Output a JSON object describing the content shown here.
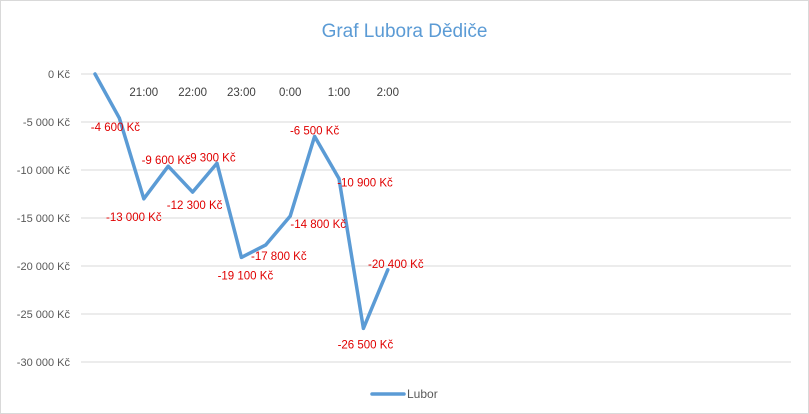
{
  "chart_data": {
    "type": "line",
    "title": "Graf Lubora Dědiče",
    "xlabel": "",
    "ylabel": "",
    "ylim": [
      -30000,
      0
    ],
    "yticks": [
      0,
      -5000,
      -10000,
      -15000,
      -20000,
      -25000,
      -30000
    ],
    "ytick_labels": [
      "0 Kč",
      "-5 000 Kč",
      "-10 000 Kč",
      "-15 000 Kč",
      "-20 000 Kč",
      "-25 000 Kč",
      "-30 000 Kč"
    ],
    "x_tick_labels": [
      "21:00",
      "22:00",
      "23:00",
      "0:00",
      "1:00",
      "2:00"
    ],
    "x_tick_index": [
      2,
      4,
      6,
      8,
      10,
      12
    ],
    "legend_position": "bottom",
    "grid": true,
    "series": [
      {
        "name": "Lubor",
        "color": "#5b9bd5",
        "values": [
          0,
          -4600,
          -13000,
          -9600,
          -12300,
          -9300,
          -19100,
          -17800,
          -14800,
          -6500,
          -10900,
          -26500,
          -20400
        ],
        "labels": [
          "",
          "-4 600 Kč",
          "-13 000 Kč",
          "-9 600 Kč",
          "-12 300 Kč",
          "-9 300 Kč",
          "-19 100 Kč",
          "-17 800 Kč",
          "-14 800 Kč",
          "-6 500 Kč",
          "-10 900 Kč",
          "-26 500 Kč",
          "-20 400 Kč"
        ]
      }
    ]
  }
}
